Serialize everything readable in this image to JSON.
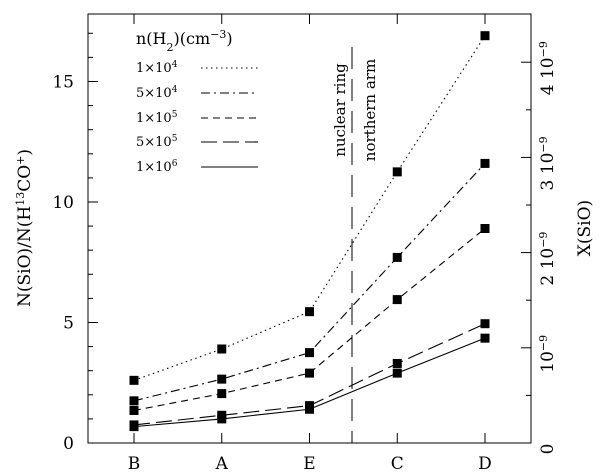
{
  "chart_data": {
    "type": "line",
    "categories": [
      "B",
      "A",
      "E",
      "C",
      "D"
    ],
    "series": [
      {
        "label": "1×10^4",
        "values": [
          2.6,
          3.9,
          5.45,
          11.25,
          16.9
        ],
        "dash": "dotted"
      },
      {
        "label": "5×10^4",
        "values": [
          1.75,
          2.65,
          3.75,
          7.7,
          11.6
        ],
        "dash": "dashdot"
      },
      {
        "label": "1×10^5",
        "values": [
          1.35,
          2.05,
          2.9,
          5.95,
          8.9
        ],
        "dash": "dashed"
      },
      {
        "label": "5×10^5",
        "values": [
          0.75,
          1.15,
          1.55,
          3.3,
          4.95
        ],
        "dash": "longdash"
      },
      {
        "label": "1×10^6",
        "values": [
          0.68,
          1.0,
          1.4,
          2.9,
          4.35
        ],
        "dash": "solid"
      }
    ],
    "legend_title": "n(H2)(cm^-3)",
    "ylim": [
      0,
      17.8
    ],
    "yticks": [
      0,
      5,
      10,
      15
    ],
    "ylabel": "N(SiO)/N(H13CO+)",
    "y2label": "X(SiO)",
    "y2ticks": [
      {
        "label": "0",
        "value": 0
      },
      {
        "label": "10-9",
        "value": 1
      },
      {
        "label": "2 10-9",
        "value": 2
      },
      {
        "label": "3 10-9",
        "value": 3
      },
      {
        "label": "4 10-9",
        "value": 4
      }
    ],
    "annotations": [
      "nuclear ring",
      "northern arm"
    ]
  }
}
